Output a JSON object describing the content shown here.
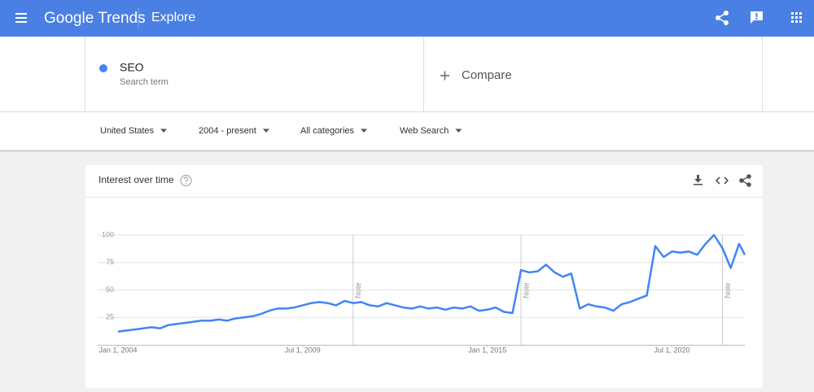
{
  "header": {
    "logo": "Google Trends",
    "page": "Explore"
  },
  "search": {
    "term": "SEO",
    "subtitle": "Search term",
    "compare": "Compare"
  },
  "filters": [
    "United States",
    "2004 - present",
    "All categories",
    "Web Search"
  ],
  "chart_data": {
    "type": "line",
    "title": "Interest over time",
    "color": "#4285f4",
    "grid": true,
    "x": [
      "2004-01-01",
      "2004-04-01",
      "2004-07-01",
      "2004-10-01",
      "2005-01-01",
      "2005-04-01",
      "2005-07-01",
      "2005-10-01",
      "2006-01-01",
      "2006-04-01",
      "2006-07-01",
      "2006-10-01",
      "2007-01-01",
      "2007-04-01",
      "2007-07-01",
      "2007-10-01",
      "2008-01-01",
      "2008-04-01",
      "2008-07-01",
      "2008-10-01",
      "2009-01-01",
      "2009-04-01",
      "2009-07-01",
      "2009-10-01",
      "2010-01-01",
      "2010-04-01",
      "2010-07-01",
      "2010-10-01",
      "2011-01-01",
      "2011-04-01",
      "2011-07-01",
      "2011-10-01",
      "2012-01-01",
      "2012-04-01",
      "2012-07-01",
      "2012-10-01",
      "2013-01-01",
      "2013-04-01",
      "2013-07-01",
      "2013-10-01",
      "2014-01-01",
      "2014-04-01",
      "2014-07-01",
      "2014-10-01",
      "2015-01-01",
      "2015-04-01",
      "2015-07-01",
      "2015-10-01",
      "2016-01-01",
      "2016-04-01",
      "2016-07-01",
      "2016-10-01",
      "2017-01-01",
      "2017-04-01",
      "2017-07-01",
      "2017-10-01",
      "2018-01-01",
      "2018-04-01",
      "2018-07-01",
      "2018-10-01",
      "2019-01-01",
      "2019-04-01",
      "2019-07-01",
      "2019-10-01",
      "2020-01-01",
      "2020-04-01",
      "2020-07-01",
      "2020-10-01",
      "2021-01-01",
      "2021-04-01",
      "2021-07-01",
      "2021-10-01",
      "2022-01-01",
      "2022-04-01",
      "2022-07-01",
      "2022-09-01"
    ],
    "values": [
      12,
      13,
      14,
      15,
      16,
      15,
      18,
      19,
      20,
      21,
      22,
      22,
      23,
      22,
      24,
      25,
      26,
      28,
      31,
      33,
      33,
      34,
      36,
      38,
      39,
      38,
      36,
      40,
      38,
      39,
      36,
      35,
      38,
      36,
      34,
      33,
      35,
      33,
      34,
      32,
      34,
      33,
      35,
      31,
      32,
      34,
      30,
      29,
      68,
      66,
      67,
      73,
      66,
      62,
      65,
      33,
      37,
      35,
      34,
      31,
      37,
      39,
      42,
      45,
      90,
      80,
      85,
      84,
      85,
      82,
      92,
      100,
      88,
      70,
      92,
      82
    ],
    "xlim": [
      "2004-01-01",
      "2022-09-01"
    ],
    "xticks": [
      {
        "value": "2004-01-01",
        "label": "Jan 1, 2004"
      },
      {
        "value": "2009-07-01",
        "label": "Jul 1, 2009"
      },
      {
        "value": "2015-01-01",
        "label": "Jan 1, 2015"
      },
      {
        "value": "2020-07-01",
        "label": "Jul 1, 2020"
      }
    ],
    "ylim": [
      0,
      100
    ],
    "yticks": [
      25,
      50,
      75,
      100
    ],
    "annotations": [
      {
        "x": "2011-01-01",
        "label": "Note"
      },
      {
        "x": "2016-01-01",
        "label": "Note"
      },
      {
        "x": "2022-01-01",
        "label": "Note"
      }
    ]
  }
}
